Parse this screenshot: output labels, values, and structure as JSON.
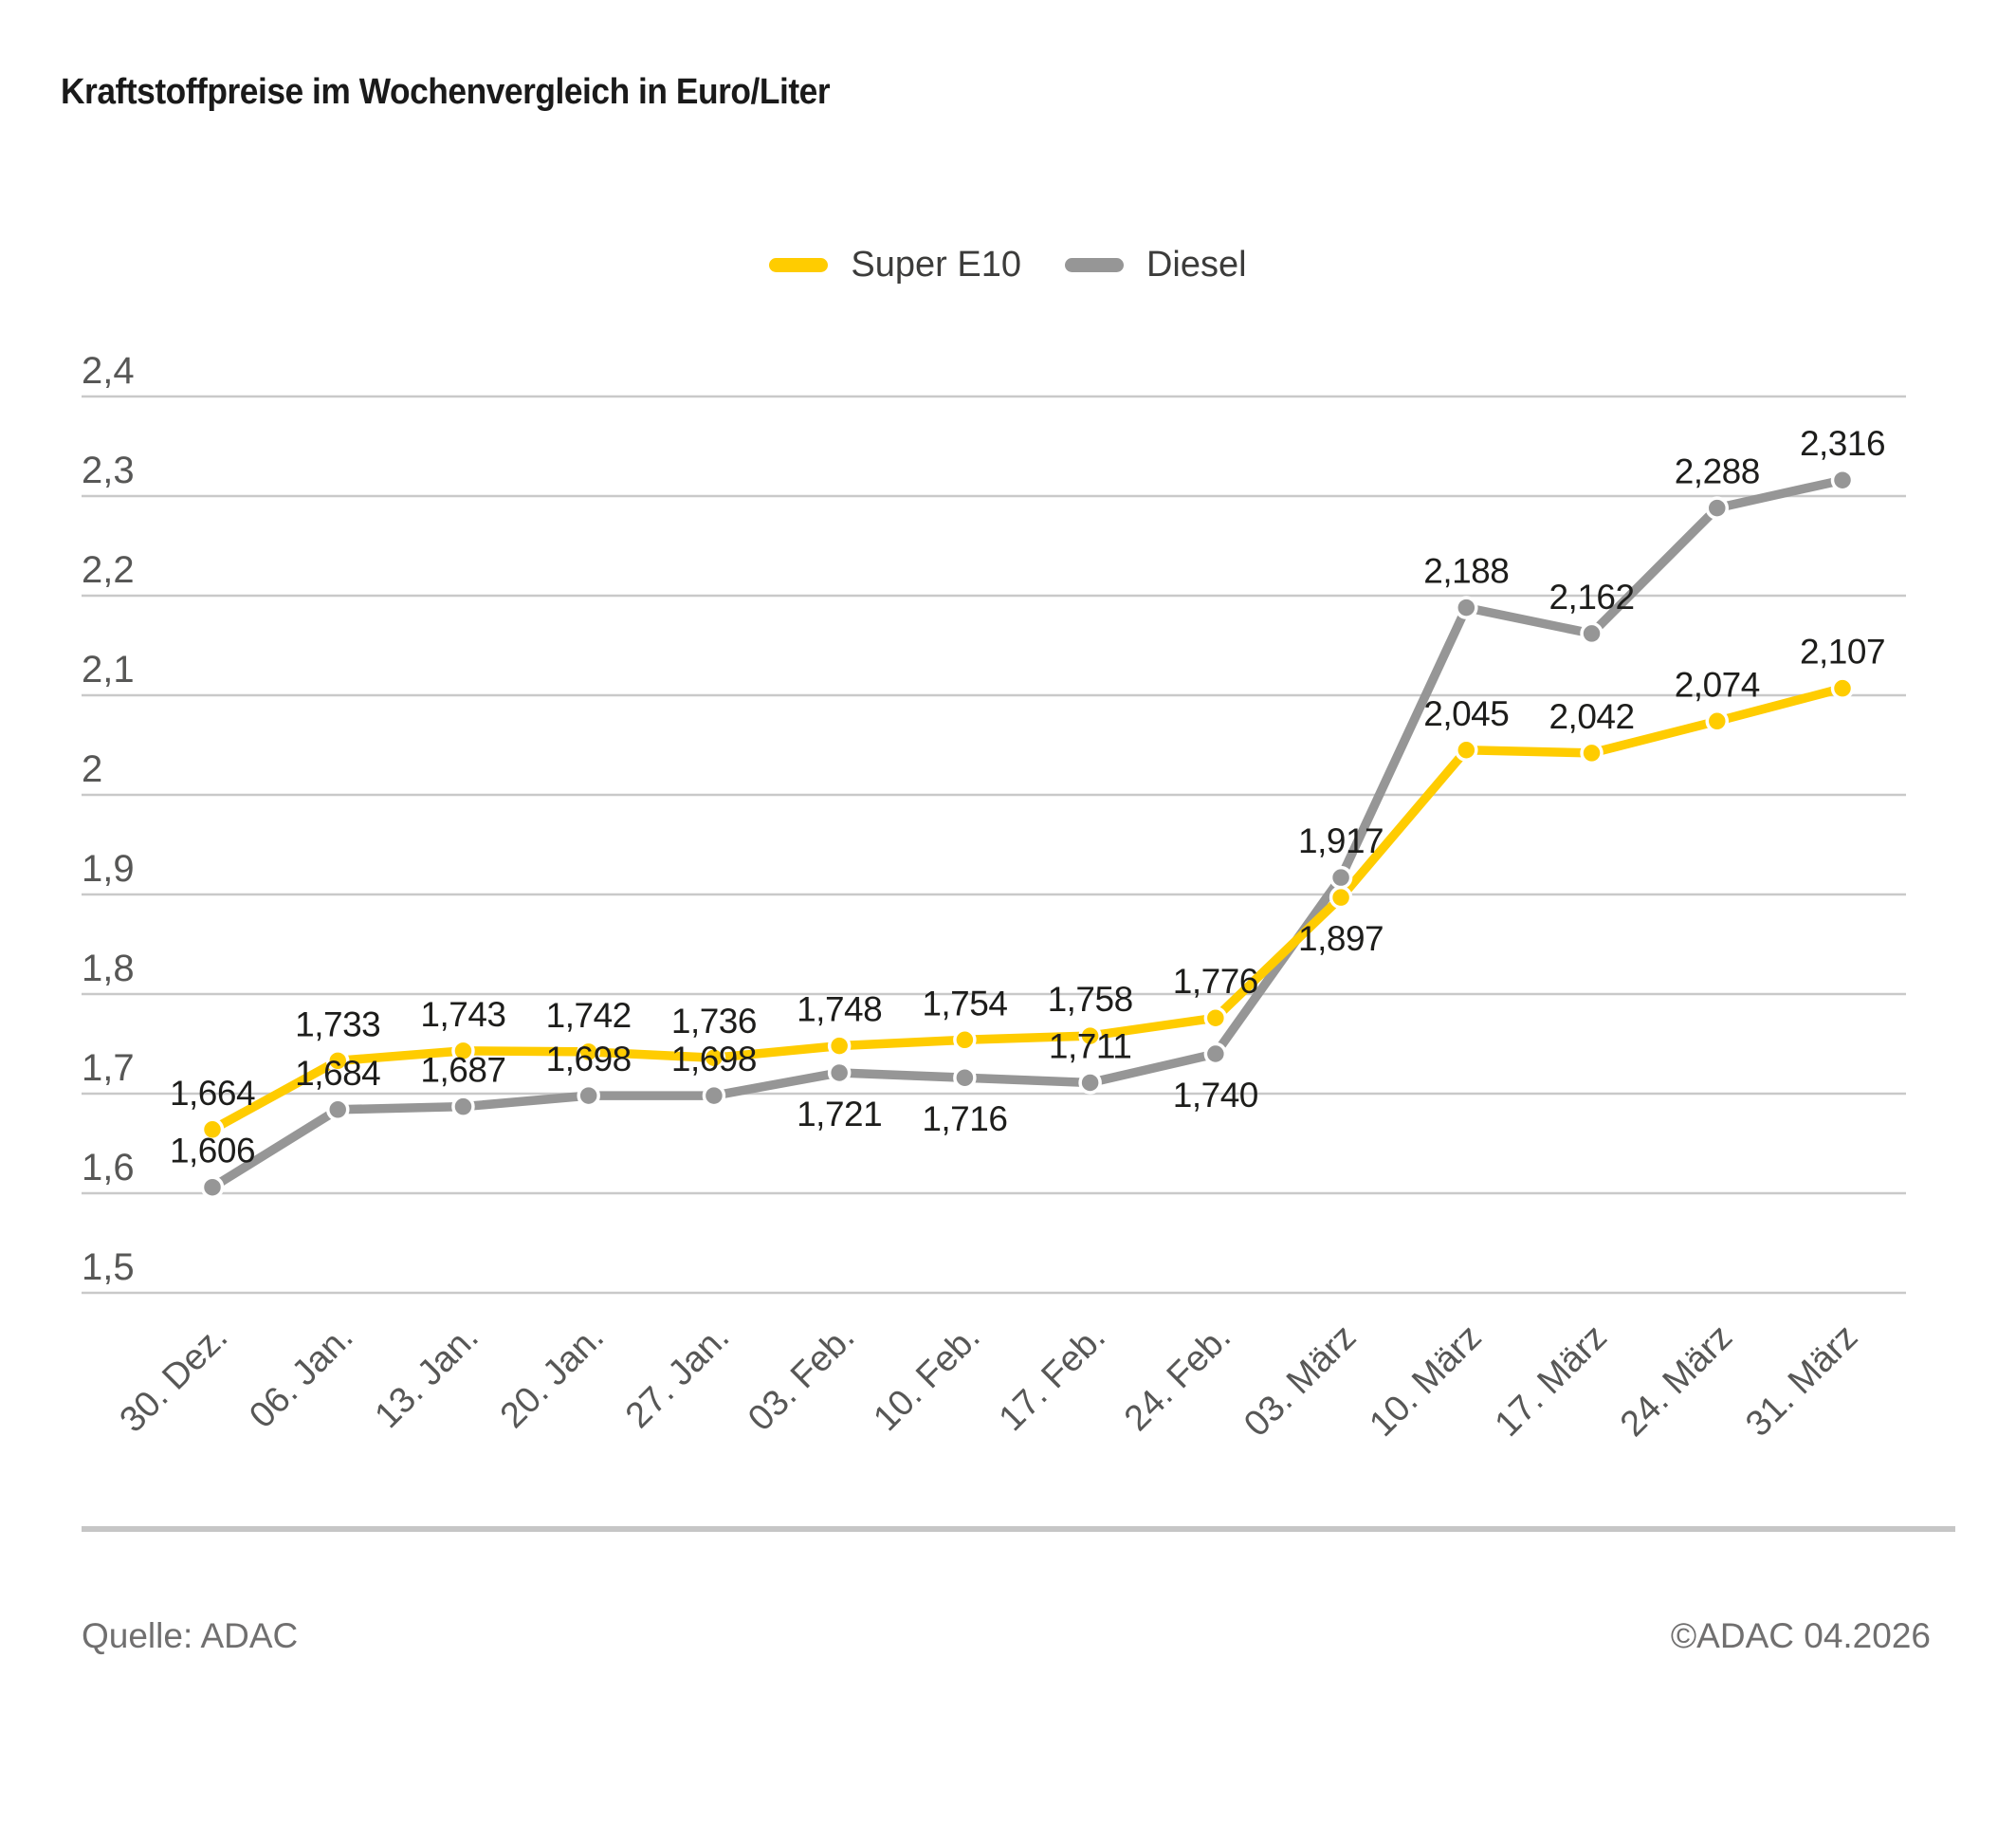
{
  "title": "Kraftstoffpreise im Wochenvergleich in Euro/Liter",
  "legend": {
    "items": [
      {
        "label": "Super E10",
        "color": "#FFCC00"
      },
      {
        "label": "Diesel",
        "color": "#969696"
      }
    ]
  },
  "footer": {
    "source": "Quelle: ADAC",
    "copyright": "©ADAC 04.2026"
  },
  "colors": {
    "background": "#FFFFFF",
    "title_text": "#1A1A1A",
    "grid": "#C9C9C9",
    "axis_text": "#575756",
    "data_label": "#1D1D1B",
    "marker_ring": "#FFFFFF",
    "divider": "#C6C6C6",
    "footer_text": "#706F6F"
  },
  "chart_data": {
    "type": "line",
    "title": "Kraftstoffpreise im Wochenvergleich in Euro/Liter",
    "unit": "Euro/Liter",
    "categories": [
      "30. Dez.",
      "06. Jan.",
      "13. Jan.",
      "20. Jan.",
      "27. Jan.",
      "03. Feb.",
      "10. Feb.",
      "17. Feb.",
      "24. Feb.",
      "03. März",
      "10. März",
      "17. März",
      "24. März",
      "31. März"
    ],
    "series": [
      {
        "name": "Super E10",
        "color": "#FFCC00",
        "values": [
          1.664,
          1.733,
          1.743,
          1.742,
          1.736,
          1.748,
          1.754,
          1.758,
          1.776,
          1.897,
          2.045,
          2.042,
          2.074,
          2.107
        ],
        "labels": [
          "1,664",
          "1,733",
          "1,743",
          "1,742",
          "1,736",
          "1,748",
          "1,754",
          "1,758",
          "1,776",
          "1,897",
          "2,045",
          "2,042",
          "2,074",
          "2,107"
        ],
        "label_below_indices": [
          9
        ]
      },
      {
        "name": "Diesel",
        "color": "#969696",
        "values": [
          1.606,
          1.684,
          1.687,
          1.698,
          1.698,
          1.721,
          1.716,
          1.711,
          1.74,
          1.917,
          2.188,
          2.162,
          2.288,
          2.316
        ],
        "labels": [
          "1,606",
          "1,684",
          "1,687",
          "1,698",
          "1,698",
          "1,721",
          "1,716",
          "1,711",
          "1,740",
          "1,917",
          "2,188",
          "2,162",
          "2,288",
          "2,316"
        ],
        "label_below_indices": [
          5,
          6,
          8
        ]
      }
    ],
    "ylim": [
      1.5,
      2.4
    ],
    "ytick_step": 0.1,
    "yticks": [
      {
        "value": 1.5,
        "label": "1,5"
      },
      {
        "value": 1.6,
        "label": "1,6"
      },
      {
        "value": 1.7,
        "label": "1,7"
      },
      {
        "value": 1.8,
        "label": "1,8"
      },
      {
        "value": 1.9,
        "label": "1,9"
      },
      {
        "value": 2.0,
        "label": "2"
      },
      {
        "value": 2.1,
        "label": "2,1"
      },
      {
        "value": 2.2,
        "label": "2,2"
      },
      {
        "value": 2.3,
        "label": "2,3"
      },
      {
        "value": 2.4,
        "label": "2,4"
      }
    ],
    "grid": true,
    "legend_position": "top-center",
    "x_label_rotation": -45
  }
}
